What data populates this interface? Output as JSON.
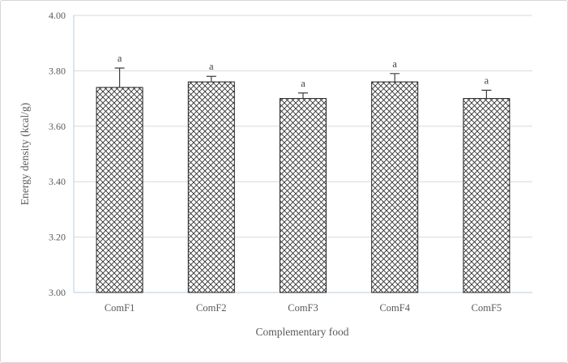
{
  "chart_data": {
    "type": "bar",
    "title": "",
    "categories": [
      "ComF1",
      "ComF2",
      "ComF3",
      "ComF4",
      "ComF5"
    ],
    "values": [
      3.74,
      3.76,
      3.7,
      3.76,
      3.7
    ],
    "errors": [
      0.07,
      0.02,
      0.02,
      0.03,
      0.03
    ],
    "sig_labels": [
      "a",
      "a",
      "a",
      "a",
      "a"
    ],
    "xlabel": "Complementary food",
    "ylabel": "Energy density (kcal/g)",
    "ylim": [
      3.0,
      4.0
    ],
    "ytick_step": 0.2,
    "ytick_labels": [
      "3.00",
      "3.20",
      "3.40",
      "3.60",
      "3.80",
      "4.00"
    ],
    "grid": true,
    "legend": "none",
    "bar_fill": "crosshatch",
    "colors": {
      "bar_border": "#1f1f1f",
      "hatch": "#2b2b2b",
      "grid": "#d9d9d9",
      "axis_line": "#b9cde5",
      "text": "#595959",
      "sig_label": "#404040",
      "error_bar": "#3f3f3f"
    }
  }
}
